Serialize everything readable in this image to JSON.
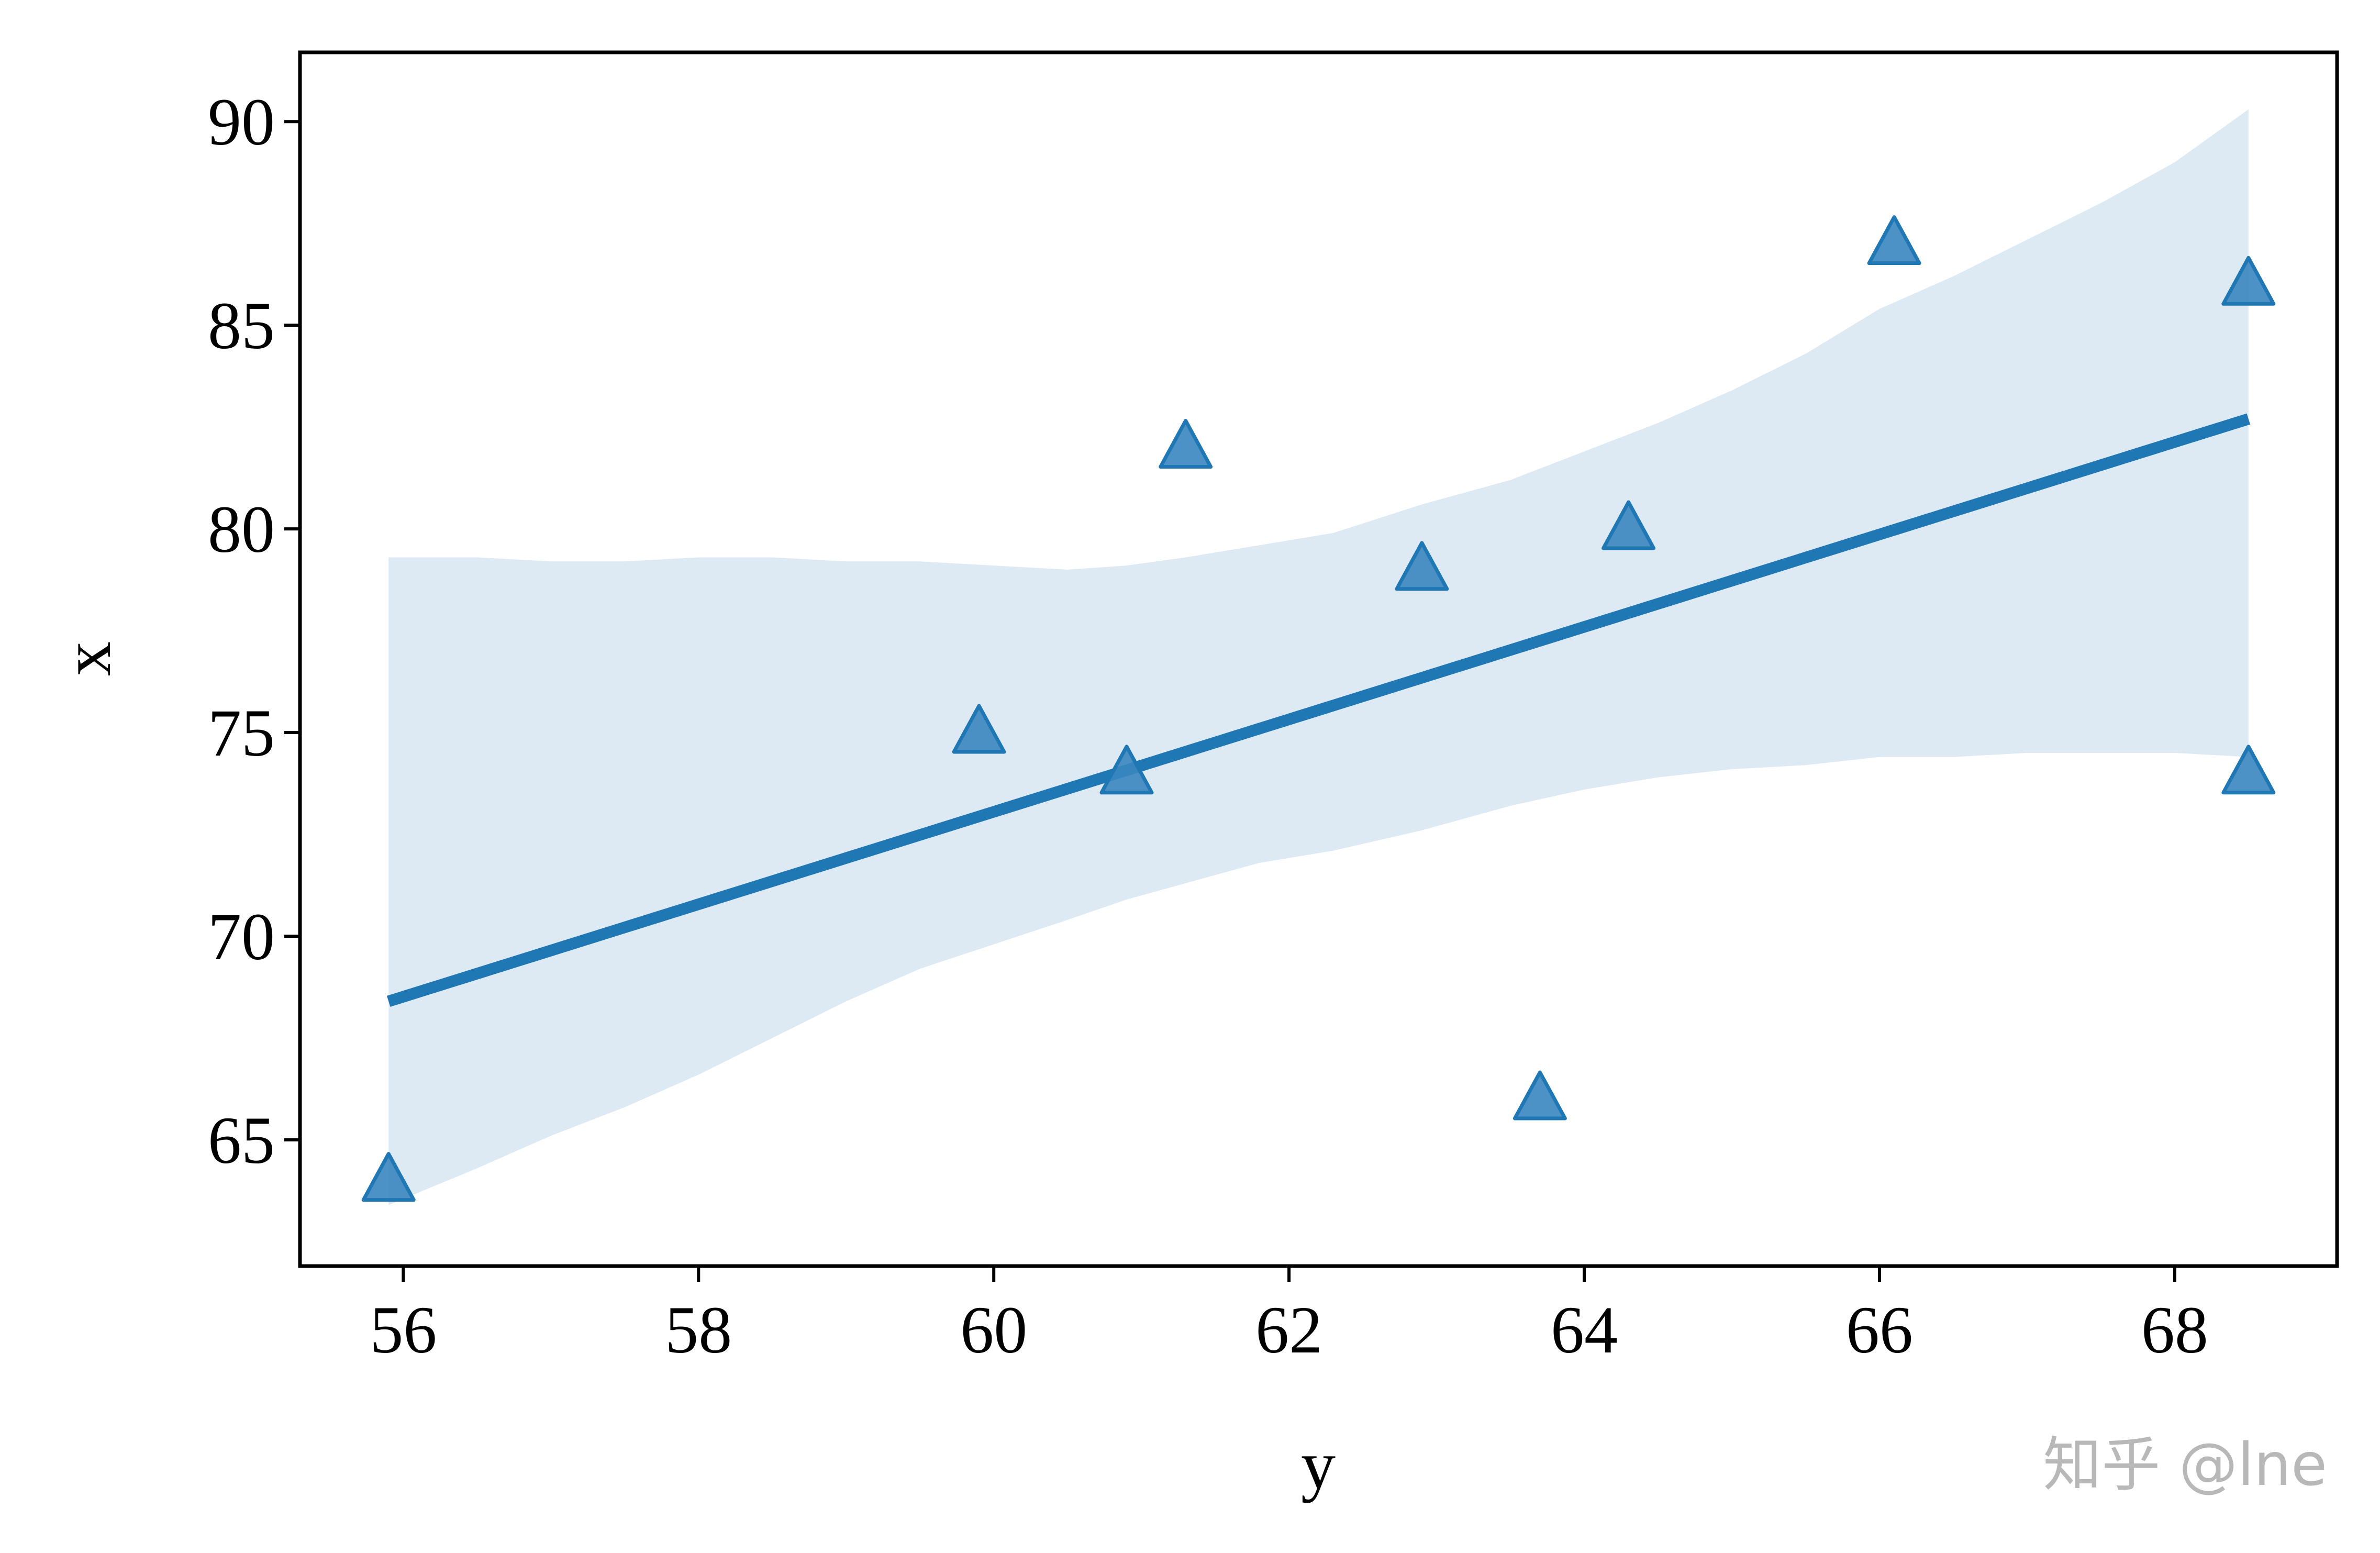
{
  "chart_data": {
    "type": "scatter",
    "title": "",
    "xlabel": "y",
    "ylabel": "x",
    "xlim": [
      55.3,
      69.1
    ],
    "ylim": [
      61.9,
      91.7
    ],
    "xticks": [
      56,
      58,
      60,
      62,
      64,
      66,
      68
    ],
    "yticks": [
      65,
      70,
      75,
      80,
      85,
      90
    ],
    "grid": false,
    "marker": "triangle",
    "points": [
      {
        "x": 55.9,
        "y": 64
      },
      {
        "x": 59.9,
        "y": 75
      },
      {
        "x": 60.9,
        "y": 74
      },
      {
        "x": 61.3,
        "y": 82
      },
      {
        "x": 62.9,
        "y": 79
      },
      {
        "x": 63.7,
        "y": 66
      },
      {
        "x": 64.3,
        "y": 80
      },
      {
        "x": 66.1,
        "y": 87
      },
      {
        "x": 68.5,
        "y": 86
      },
      {
        "x": 68.5,
        "y": 74
      }
    ],
    "regression_line": {
      "x": [
        55.9,
        68.5
      ],
      "y": [
        68.4,
        82.7
      ]
    },
    "confidence_band": {
      "x": [
        55.9,
        56.5,
        57.0,
        57.5,
        58.0,
        58.5,
        59.0,
        59.5,
        60.0,
        60.5,
        60.9,
        61.3,
        61.8,
        62.3,
        62.9,
        63.5,
        64.0,
        64.5,
        65.0,
        65.5,
        66.0,
        66.5,
        67.0,
        67.5,
        68.0,
        68.5
      ],
      "upper": [
        79.3,
        79.3,
        79.2,
        79.2,
        79.3,
        79.3,
        79.2,
        79.2,
        79.1,
        79.0,
        79.1,
        79.3,
        79.6,
        79.9,
        80.6,
        81.2,
        81.9,
        82.6,
        83.4,
        84.3,
        85.4,
        86.2,
        87.1,
        88.0,
        89.0,
        90.3
      ],
      "lower": [
        63.4,
        64.3,
        65.1,
        65.8,
        66.6,
        67.5,
        68.4,
        69.2,
        69.8,
        70.4,
        70.9,
        71.3,
        71.8,
        72.1,
        72.6,
        73.2,
        73.6,
        73.9,
        74.1,
        74.2,
        74.4,
        74.4,
        74.5,
        74.5,
        74.5,
        74.4
      ]
    },
    "colors": {
      "line": "#1f77b4",
      "marker_fill": "#3a86c0",
      "marker_edge": "#1f77b4",
      "band": "#dde9f3"
    }
  },
  "watermark": "知乎 @lne"
}
